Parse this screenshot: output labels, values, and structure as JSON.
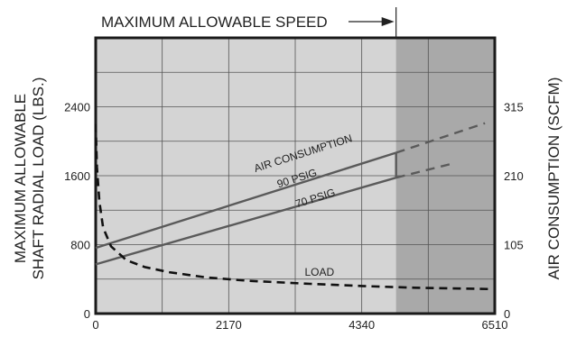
{
  "chart_data": {
    "type": "line",
    "top_label": "MAXIMUM ALLOWABLE SPEED",
    "ylabel_left": [
      "MAXIMUM ALLOWABLE",
      "SHAFT RADIAL LOAD (LBS.)"
    ],
    "ylabel_right": "AIR CONSUMPTION (SCFM)",
    "xlim": [
      0,
      6510
    ],
    "ylim_left": [
      0,
      3200
    ],
    "ylim_right": [
      0,
      420
    ],
    "x_ticks": [
      0,
      2170,
      4340,
      6510
    ],
    "y_ticks_left": [
      0,
      800,
      1600,
      2400
    ],
    "y_ticks_right": [
      0,
      105,
      210,
      315
    ],
    "max_speed_x": 4900,
    "grid": true,
    "colors": {
      "plot_bg": "#d4d4d4",
      "shaded_bg": "#a9a9a9",
      "line": "#5a5a5a",
      "frame": "#1a1a1a"
    },
    "series": [
      {
        "name": "AIR CONSUMPTION 90 PSIG",
        "axis": "right",
        "style": "solid",
        "points": [
          [
            0,
            100
          ],
          [
            4900,
            245
          ]
        ],
        "extension": [
          [
            4900,
            245
          ],
          [
            6350,
            290
          ]
        ]
      },
      {
        "name": "70 PSIG",
        "axis": "right",
        "style": "solid",
        "points": [
          [
            0,
            75
          ],
          [
            4900,
            207
          ]
        ],
        "extension": [
          [
            4900,
            207
          ],
          [
            5800,
            228
          ]
        ]
      },
      {
        "name": "LOAD",
        "axis": "left",
        "style": "dashed",
        "points": [
          [
            0,
            2200
          ],
          [
            20,
            1700
          ],
          [
            60,
            1300
          ],
          [
            120,
            1000
          ],
          [
            250,
            780
          ],
          [
            500,
            620
          ],
          [
            800,
            540
          ],
          [
            1200,
            480
          ],
          [
            1800,
            420
          ],
          [
            2500,
            380
          ],
          [
            3500,
            345
          ],
          [
            4340,
            320
          ],
          [
            5200,
            300
          ],
          [
            6000,
            290
          ],
          [
            6400,
            285
          ]
        ]
      }
    ],
    "annotations": [
      {
        "text": "AIR CONSUMPTION",
        "x": 3400,
        "y": 1820,
        "axis": "left"
      },
      {
        "text": "90 PSIG",
        "x": 3300,
        "y": 1530,
        "axis": "left"
      },
      {
        "text": "70 PSIG",
        "x": 3600,
        "y": 1300,
        "axis": "left"
      },
      {
        "text": "LOAD",
        "x": 3650,
        "y": 440,
        "axis": "left"
      }
    ]
  }
}
